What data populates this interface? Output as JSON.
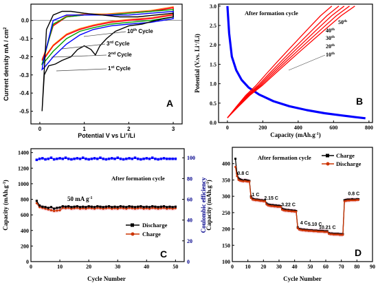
{
  "chart_data": [
    {
      "panel": "A",
      "type": "line",
      "xlabel": "Potential V vs Li+/Li",
      "xlabel_main": "Potential V vs Li",
      "xlabel_sup": "+",
      "xlabel_tail": "/Li",
      "ylabel": "Current density mA / cm2",
      "ylabel_main": "Current density mA / cm",
      "ylabel_sup": "2",
      "xlim": [
        -0.2,
        3.2
      ],
      "ylim": [
        -0.57,
        0.09
      ],
      "xticks": [
        0,
        1,
        2,
        3
      ],
      "yticks": [
        0.0,
        -0.1,
        -0.2,
        -0.3,
        -0.4,
        -0.5
      ],
      "ytick_labels": [
        "0.0",
        "-0.1",
        "-0.2",
        "-0.3",
        "-0.4",
        "-0.5"
      ],
      "series": [
        {
          "name": "1st Cycle",
          "color": "#000000",
          "x": [
            0.05,
            0.1,
            0.2,
            0.35,
            0.5,
            0.7,
            0.85,
            1.0,
            1.15,
            1.25,
            1.35,
            1.5,
            1.7,
            2.0,
            2.3,
            2.6,
            3.0,
            3.0,
            2.6,
            2.2,
            1.8,
            1.4,
            1.0,
            0.7,
            0.5,
            0.3,
            0.15,
            0.05
          ],
          "y": [
            -0.5,
            -0.3,
            -0.25,
            -0.24,
            -0.22,
            -0.2,
            -0.16,
            -0.14,
            -0.16,
            -0.19,
            -0.14,
            -0.1,
            -0.06,
            -0.03,
            -0.02,
            0.0,
            0.02,
            0.04,
            0.03,
            0.02,
            0.02,
            0.03,
            0.04,
            0.05,
            0.05,
            0.03,
            -0.05,
            -0.5
          ]
        },
        {
          "name": "2nd Cycle",
          "color": "#0000ff",
          "x": [
            0.05,
            0.1,
            0.3,
            0.6,
            0.9,
            1.2,
            1.6,
            2.0,
            2.5,
            3.0,
            3.0,
            2.5,
            2.0,
            1.5,
            1.0,
            0.6,
            0.3,
            0.1
          ],
          "y": [
            -0.27,
            -0.26,
            -0.2,
            -0.13,
            -0.08,
            -0.05,
            -0.03,
            -0.02,
            -0.01,
            0.01,
            0.05,
            0.04,
            0.03,
            0.03,
            0.03,
            0.03,
            0.0,
            -0.2
          ]
        },
        {
          "name": "3rd Cycle",
          "color": "#00a000",
          "x": [
            0.05,
            0.1,
            0.3,
            0.6,
            0.9,
            1.2,
            1.6,
            2.0,
            2.5,
            3.0,
            3.0,
            2.5,
            2.0,
            1.5,
            1.0,
            0.6,
            0.3,
            0.1
          ],
          "y": [
            -0.24,
            -0.23,
            -0.17,
            -0.1,
            -0.06,
            -0.04,
            -0.02,
            -0.01,
            0.0,
            0.02,
            0.06,
            0.05,
            0.04,
            0.03,
            0.03,
            0.02,
            -0.02,
            -0.2
          ]
        },
        {
          "name": "10th Cycle",
          "color": "#ff0000",
          "x": [
            0.05,
            0.1,
            0.3,
            0.6,
            0.9,
            1.2,
            1.6,
            2.0,
            2.5,
            3.0,
            3.0,
            2.5,
            2.0,
            1.5,
            1.0,
            0.6,
            0.3,
            0.1
          ],
          "y": [
            -0.22,
            -0.21,
            -0.14,
            -0.08,
            -0.05,
            -0.03,
            -0.01,
            0.0,
            0.01,
            0.03,
            0.07,
            0.05,
            0.04,
            0.03,
            0.03,
            0.02,
            -0.03,
            -0.19
          ]
        }
      ],
      "extra_colors": [
        "#ff00ff",
        "#ff8c00"
      ],
      "annotations": [
        "10th Cycle",
        "3rd Cycle",
        "2nd Cycle",
        "1st Cycle"
      ],
      "ann_main": [
        "10",
        "3",
        "2",
        "1"
      ],
      "ann_sup": [
        "th",
        "rd",
        "nd",
        "st"
      ],
      "ann_tail": [
        " Cycle",
        " Cycle",
        " Cycle",
        " Cycle"
      ],
      "panel_label": "A"
    },
    {
      "panel": "B",
      "type": "line",
      "xlabel": "Capacity (mAh.g-1)",
      "xlabel_main": "Capacity (mAh.g",
      "xlabel_sup": "-1",
      "xlabel_tail": ")",
      "ylabel": "Potential (V.vs. Li+/Li)",
      "ylabel_main": "Potential (V.vs. Li",
      "ylabel_sup": "+",
      "ylabel_tail": "/Li)",
      "xlim": [
        -50,
        820
      ],
      "ylim": [
        0,
        3.05
      ],
      "xticks": [
        0,
        200,
        400,
        600,
        800
      ],
      "yticks": [
        0.0,
        0.5,
        1.0,
        1.5,
        2.0,
        2.5,
        3.0
      ],
      "ytick_labels": [
        "0.0",
        "0.5",
        "1.0",
        "1.5",
        "2.0",
        "2.5",
        "3.0"
      ],
      "title": "After formation cycle",
      "discharge": {
        "color": "#0000ff",
        "x": [
          0,
          10,
          25,
          50,
          80,
          120,
          180,
          260,
          350,
          450,
          550,
          650,
          720,
          780
        ],
        "y": [
          3.0,
          2.3,
          1.7,
          1.35,
          1.1,
          0.9,
          0.72,
          0.55,
          0.42,
          0.32,
          0.24,
          0.18,
          0.14,
          0.11
        ]
      },
      "charge_series": [
        {
          "name": "10th",
          "color": "#ff0000",
          "end": 590
        },
        {
          "name": "20th",
          "color": "#ff0000",
          "end": 630
        },
        {
          "name": "30th",
          "color": "#ff0000",
          "end": 660
        },
        {
          "name": "40th",
          "color": "#ff0000",
          "end": 690
        },
        {
          "name": "50th",
          "color": "#ff0000",
          "end": 720
        }
      ],
      "charge_shape_y": [
        0.12,
        0.4,
        0.7,
        0.95,
        1.25,
        1.55,
        1.85,
        2.15,
        2.45,
        2.75,
        3.0
      ],
      "ann_main": [
        "50",
        "40",
        "30",
        "20",
        "10"
      ],
      "ann_sup": [
        "th",
        "th",
        "th",
        "th",
        "th"
      ],
      "panel_label": "B"
    },
    {
      "panel": "C",
      "type": "line",
      "xlabel": "Cycle Number",
      "ylabel": "Capacity (mAh.g-1)",
      "ylabel_main": "Capacity (mAh.g",
      "ylabel_sup": "-1",
      "ylabel_tail": ")",
      "y2label": "Coulombic efficiency",
      "xlim": [
        0,
        53
      ],
      "ylim": [
        0,
        1450
      ],
      "y2lim": [
        0,
        108.75
      ],
      "xticks": [
        0,
        10,
        20,
        30,
        40,
        50
      ],
      "yticks": [
        0,
        200,
        400,
        600,
        800,
        1000,
        1200,
        1400
      ],
      "y2ticks": [
        0,
        20,
        40,
        60,
        80,
        100
      ],
      "title": "After formation cycle",
      "rate": "50 mA g-1",
      "rate_main": "50 mA g",
      "rate_sup": "-1",
      "discharge": {
        "name": "Discharge",
        "color": "#000000",
        "x": [
          2,
          3,
          4,
          5,
          6,
          7,
          8,
          9,
          10,
          11,
          12,
          13,
          14,
          15,
          16,
          17,
          18,
          19,
          20,
          21,
          22,
          23,
          24,
          25,
          26,
          27,
          28,
          29,
          30,
          31,
          32,
          33,
          34,
          35,
          36,
          37,
          38,
          39,
          40,
          41,
          42,
          43,
          44,
          45,
          46,
          47,
          48,
          49,
          50
        ],
        "y": [
          780,
          720,
          705,
          700,
          690,
          700,
          680,
          690,
          695,
          710,
          705,
          710,
          700,
          705,
          710,
          700,
          705,
          700,
          710,
          705,
          700,
          710,
          705,
          700,
          705,
          710,
          700,
          705,
          700,
          710,
          705,
          700,
          710,
          705,
          700,
          705,
          710,
          700,
          705,
          700,
          710,
          705,
          700,
          705,
          710,
          700,
          705,
          700,
          705
        ]
      },
      "charge": {
        "name": "Charge",
        "color": "#cc3300",
        "x": [
          2,
          3,
          4,
          5,
          6,
          7,
          8,
          9,
          10,
          11,
          12,
          13,
          14,
          15,
          16,
          17,
          18,
          19,
          20,
          21,
          22,
          23,
          24,
          25,
          26,
          27,
          28,
          29,
          30,
          31,
          32,
          33,
          34,
          35,
          36,
          37,
          38,
          39,
          40,
          41,
          42,
          43,
          44,
          45,
          46,
          47,
          48,
          49,
          50
        ],
        "y": [
          750,
          700,
          690,
          680,
          670,
          660,
          650,
          655,
          660,
          690,
          685,
          690,
          680,
          685,
          690,
          680,
          685,
          680,
          690,
          685,
          680,
          690,
          685,
          680,
          685,
          690,
          680,
          685,
          680,
          690,
          685,
          680,
          690,
          685,
          680,
          685,
          690,
          680,
          685,
          680,
          690,
          685,
          680,
          685,
          690,
          680,
          685,
          680,
          685
        ]
      },
      "efficiency": {
        "color": "#0000ff",
        "x": [
          2,
          3,
          4,
          5,
          6,
          7,
          8,
          9,
          10,
          11,
          12,
          13,
          14,
          15,
          16,
          17,
          18,
          19,
          20,
          21,
          22,
          23,
          24,
          25,
          26,
          27,
          28,
          29,
          30,
          31,
          32,
          33,
          34,
          35,
          36,
          37,
          38,
          39,
          40,
          41,
          42,
          43,
          44,
          45,
          46,
          47,
          48,
          49,
          50
        ],
        "y": [
          98,
          99,
          99.5,
          98.5,
          99,
          100,
          98.5,
          99,
          99.5,
          99,
          100,
          99,
          98.5,
          99,
          99.5,
          99,
          100,
          99,
          98.5,
          99,
          99.5,
          99,
          100,
          99,
          98.5,
          99,
          99.5,
          99,
          100,
          99,
          98.5,
          99,
          99.5,
          99,
          100,
          99,
          98.5,
          99,
          99.5,
          99,
          100,
          99,
          98.5,
          99,
          99.5,
          99,
          99,
          99,
          99
        ]
      },
      "legend": [
        "Discharge",
        "Charge"
      ],
      "panel_label": "C"
    },
    {
      "panel": "D",
      "type": "line",
      "xlabel": "Cycle Number",
      "ylabel": "Capacity (mAh.g-1)",
      "ylabel_main": "Capacity (mAh.g",
      "ylabel_sup": "-1",
      "ylabel_tail": ")",
      "xlim": [
        0,
        90
      ],
      "ylim": [
        100,
        450
      ],
      "xticks": [
        0,
        10,
        20,
        30,
        40,
        50,
        60,
        70,
        80,
        90
      ],
      "yticks": [
        100,
        150,
        200,
        250,
        300,
        350,
        400
      ],
      "title": "After formation cycle",
      "charge": {
        "name": "Charge",
        "color": "#000000",
        "x": [
          2,
          3,
          4,
          5,
          6,
          7,
          8,
          9,
          10,
          11,
          12,
          13,
          14,
          15,
          16,
          17,
          18,
          19,
          20,
          21,
          22,
          23,
          24,
          25,
          26,
          27,
          28,
          29,
          30,
          31,
          32,
          33,
          34,
          35,
          36,
          37,
          38,
          39,
          40,
          41,
          42,
          43,
          44,
          45,
          46,
          47,
          48,
          49,
          50,
          51,
          52,
          53,
          54,
          55,
          56,
          57,
          58,
          59,
          60,
          61,
          62,
          63,
          64,
          65,
          66,
          67,
          68,
          69,
          70,
          71,
          72,
          73,
          74,
          75,
          76,
          77,
          78,
          79,
          80,
          81
        ],
        "y": [
          415,
          370,
          355,
          352,
          350,
          348,
          350,
          349,
          348,
          347,
          300,
          293,
          291,
          290,
          290,
          289,
          288,
          288,
          287,
          287,
          278,
          275,
          274,
          273,
          273,
          272,
          272,
          271,
          271,
          270,
          262,
          260,
          259,
          258,
          258,
          257,
          257,
          256,
          256,
          255,
          205,
          200,
          199,
          198,
          198,
          197,
          197,
          196,
          196,
          196,
          195,
          195,
          195,
          194,
          194,
          194,
          194,
          193,
          193,
          193,
          187,
          186,
          186,
          185,
          185,
          185,
          185,
          184,
          184,
          184,
          288,
          289,
          290,
          290,
          290,
          291,
          290,
          290,
          291,
          291
        ]
      },
      "discharge": {
        "name": "Discharge",
        "color": "#cc3300",
        "x": [
          2,
          3,
          4,
          5,
          6,
          7,
          8,
          9,
          10,
          11,
          12,
          13,
          14,
          15,
          16,
          17,
          18,
          19,
          20,
          21,
          22,
          23,
          24,
          25,
          26,
          27,
          28,
          29,
          30,
          31,
          32,
          33,
          34,
          35,
          36,
          37,
          38,
          39,
          40,
          41,
          42,
          43,
          44,
          45,
          46,
          47,
          48,
          49,
          50,
          51,
          52,
          53,
          54,
          55,
          56,
          57,
          58,
          59,
          60,
          61,
          62,
          63,
          64,
          65,
          66,
          67,
          68,
          69,
          70,
          71,
          72,
          73,
          74,
          75,
          76,
          77,
          78,
          79,
          80,
          81
        ],
        "y": [
          390,
          362,
          350,
          348,
          347,
          346,
          347,
          346,
          345,
          345,
          295,
          290,
          289,
          288,
          288,
          287,
          286,
          286,
          285,
          285,
          275,
          272,
          271,
          270,
          270,
          269,
          269,
          268,
          268,
          268,
          259,
          257,
          256,
          256,
          255,
          255,
          254,
          254,
          253,
          253,
          202,
          198,
          197,
          196,
          196,
          195,
          195,
          194,
          194,
          194,
          193,
          193,
          193,
          192,
          192,
          192,
          192,
          191,
          191,
          191,
          185,
          184,
          184,
          183,
          183,
          183,
          183,
          182,
          182,
          182,
          285,
          286,
          287,
          287,
          288,
          288,
          288,
          288,
          289,
          289
        ]
      },
      "rates": [
        "0.8 C",
        "1 C",
        "2.15 C",
        "3.22 C",
        "4 C",
        "5.10 C",
        "10.21 C",
        "0.8 C"
      ],
      "legend": [
        "Charge",
        "Discharge"
      ],
      "panel_label": "D"
    }
  ]
}
